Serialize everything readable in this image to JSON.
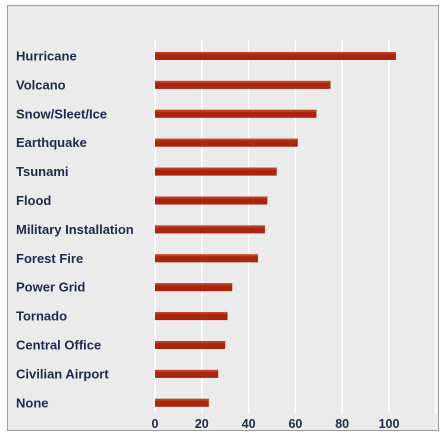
{
  "chart_data": {
    "type": "bar",
    "orientation": "horizontal",
    "categories": [
      "Hurricane",
      "Volcano",
      "Snow/Sleet/Ice",
      "Earthquake",
      "Tsunami",
      "Flood",
      "Military Installation",
      "Forest Fire",
      "Power Grid",
      "Tornado",
      "Central Office",
      "Civilian Airport",
      "None"
    ],
    "values": [
      103,
      75,
      69,
      61,
      52,
      48,
      47,
      44,
      33,
      31,
      30,
      27,
      23
    ],
    "xlim": [
      0,
      120
    ],
    "xticks": [
      0,
      20,
      40,
      60,
      80,
      100
    ],
    "grid": true,
    "colors": {
      "bar": "#a8260e",
      "bar_highlight": "#cf4a2a",
      "background": "#ebebeb",
      "grid": "#ffffff",
      "text": "#1e2a50"
    }
  }
}
